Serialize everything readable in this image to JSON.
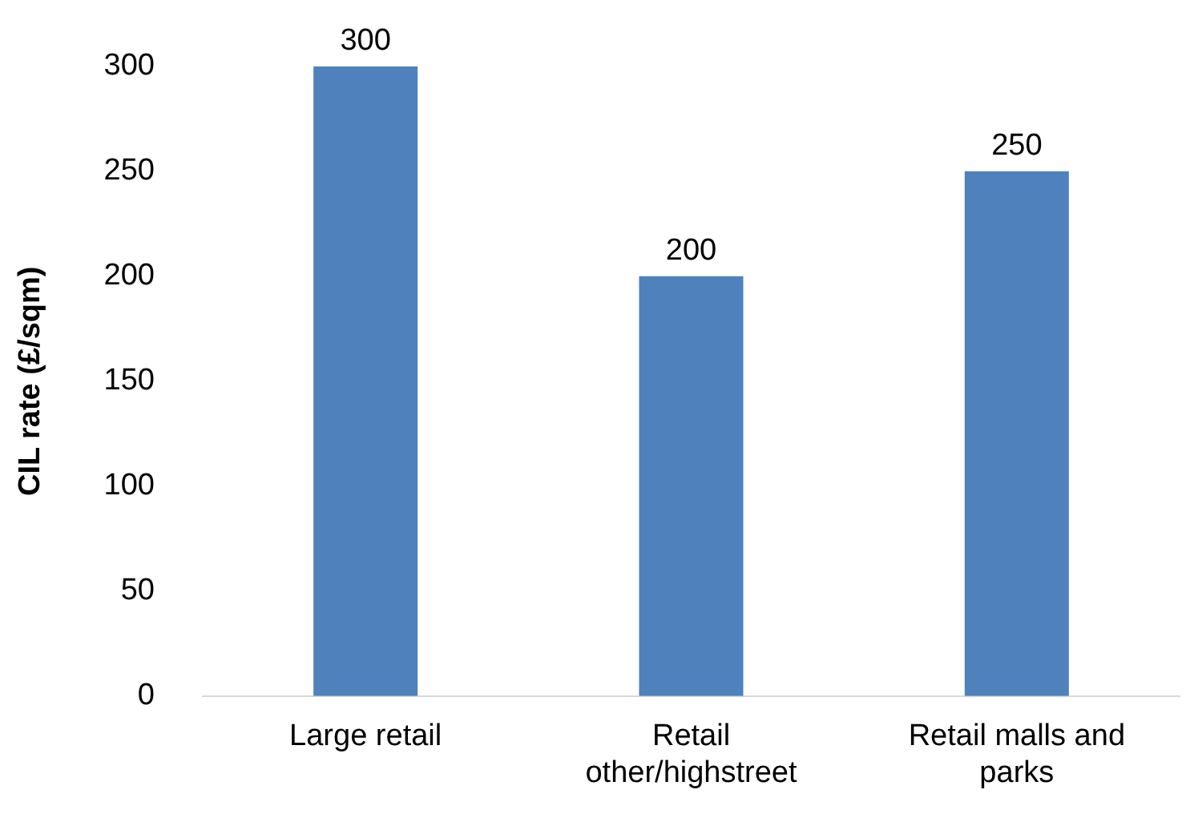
{
  "chart_data": {
    "type": "bar",
    "ylabel": "CIL rate (£/sqm)",
    "categories": [
      "Large retail",
      "Retail other/highstreet",
      "Retail malls and parks"
    ],
    "values": [
      300,
      200,
      250
    ],
    "color": "#4f81bd",
    "ylim": [
      0,
      300
    ],
    "yticks": [
      0,
      50,
      100,
      150,
      200,
      250,
      300
    ],
    "grid": false,
    "legend": false,
    "data_labels": true
  }
}
